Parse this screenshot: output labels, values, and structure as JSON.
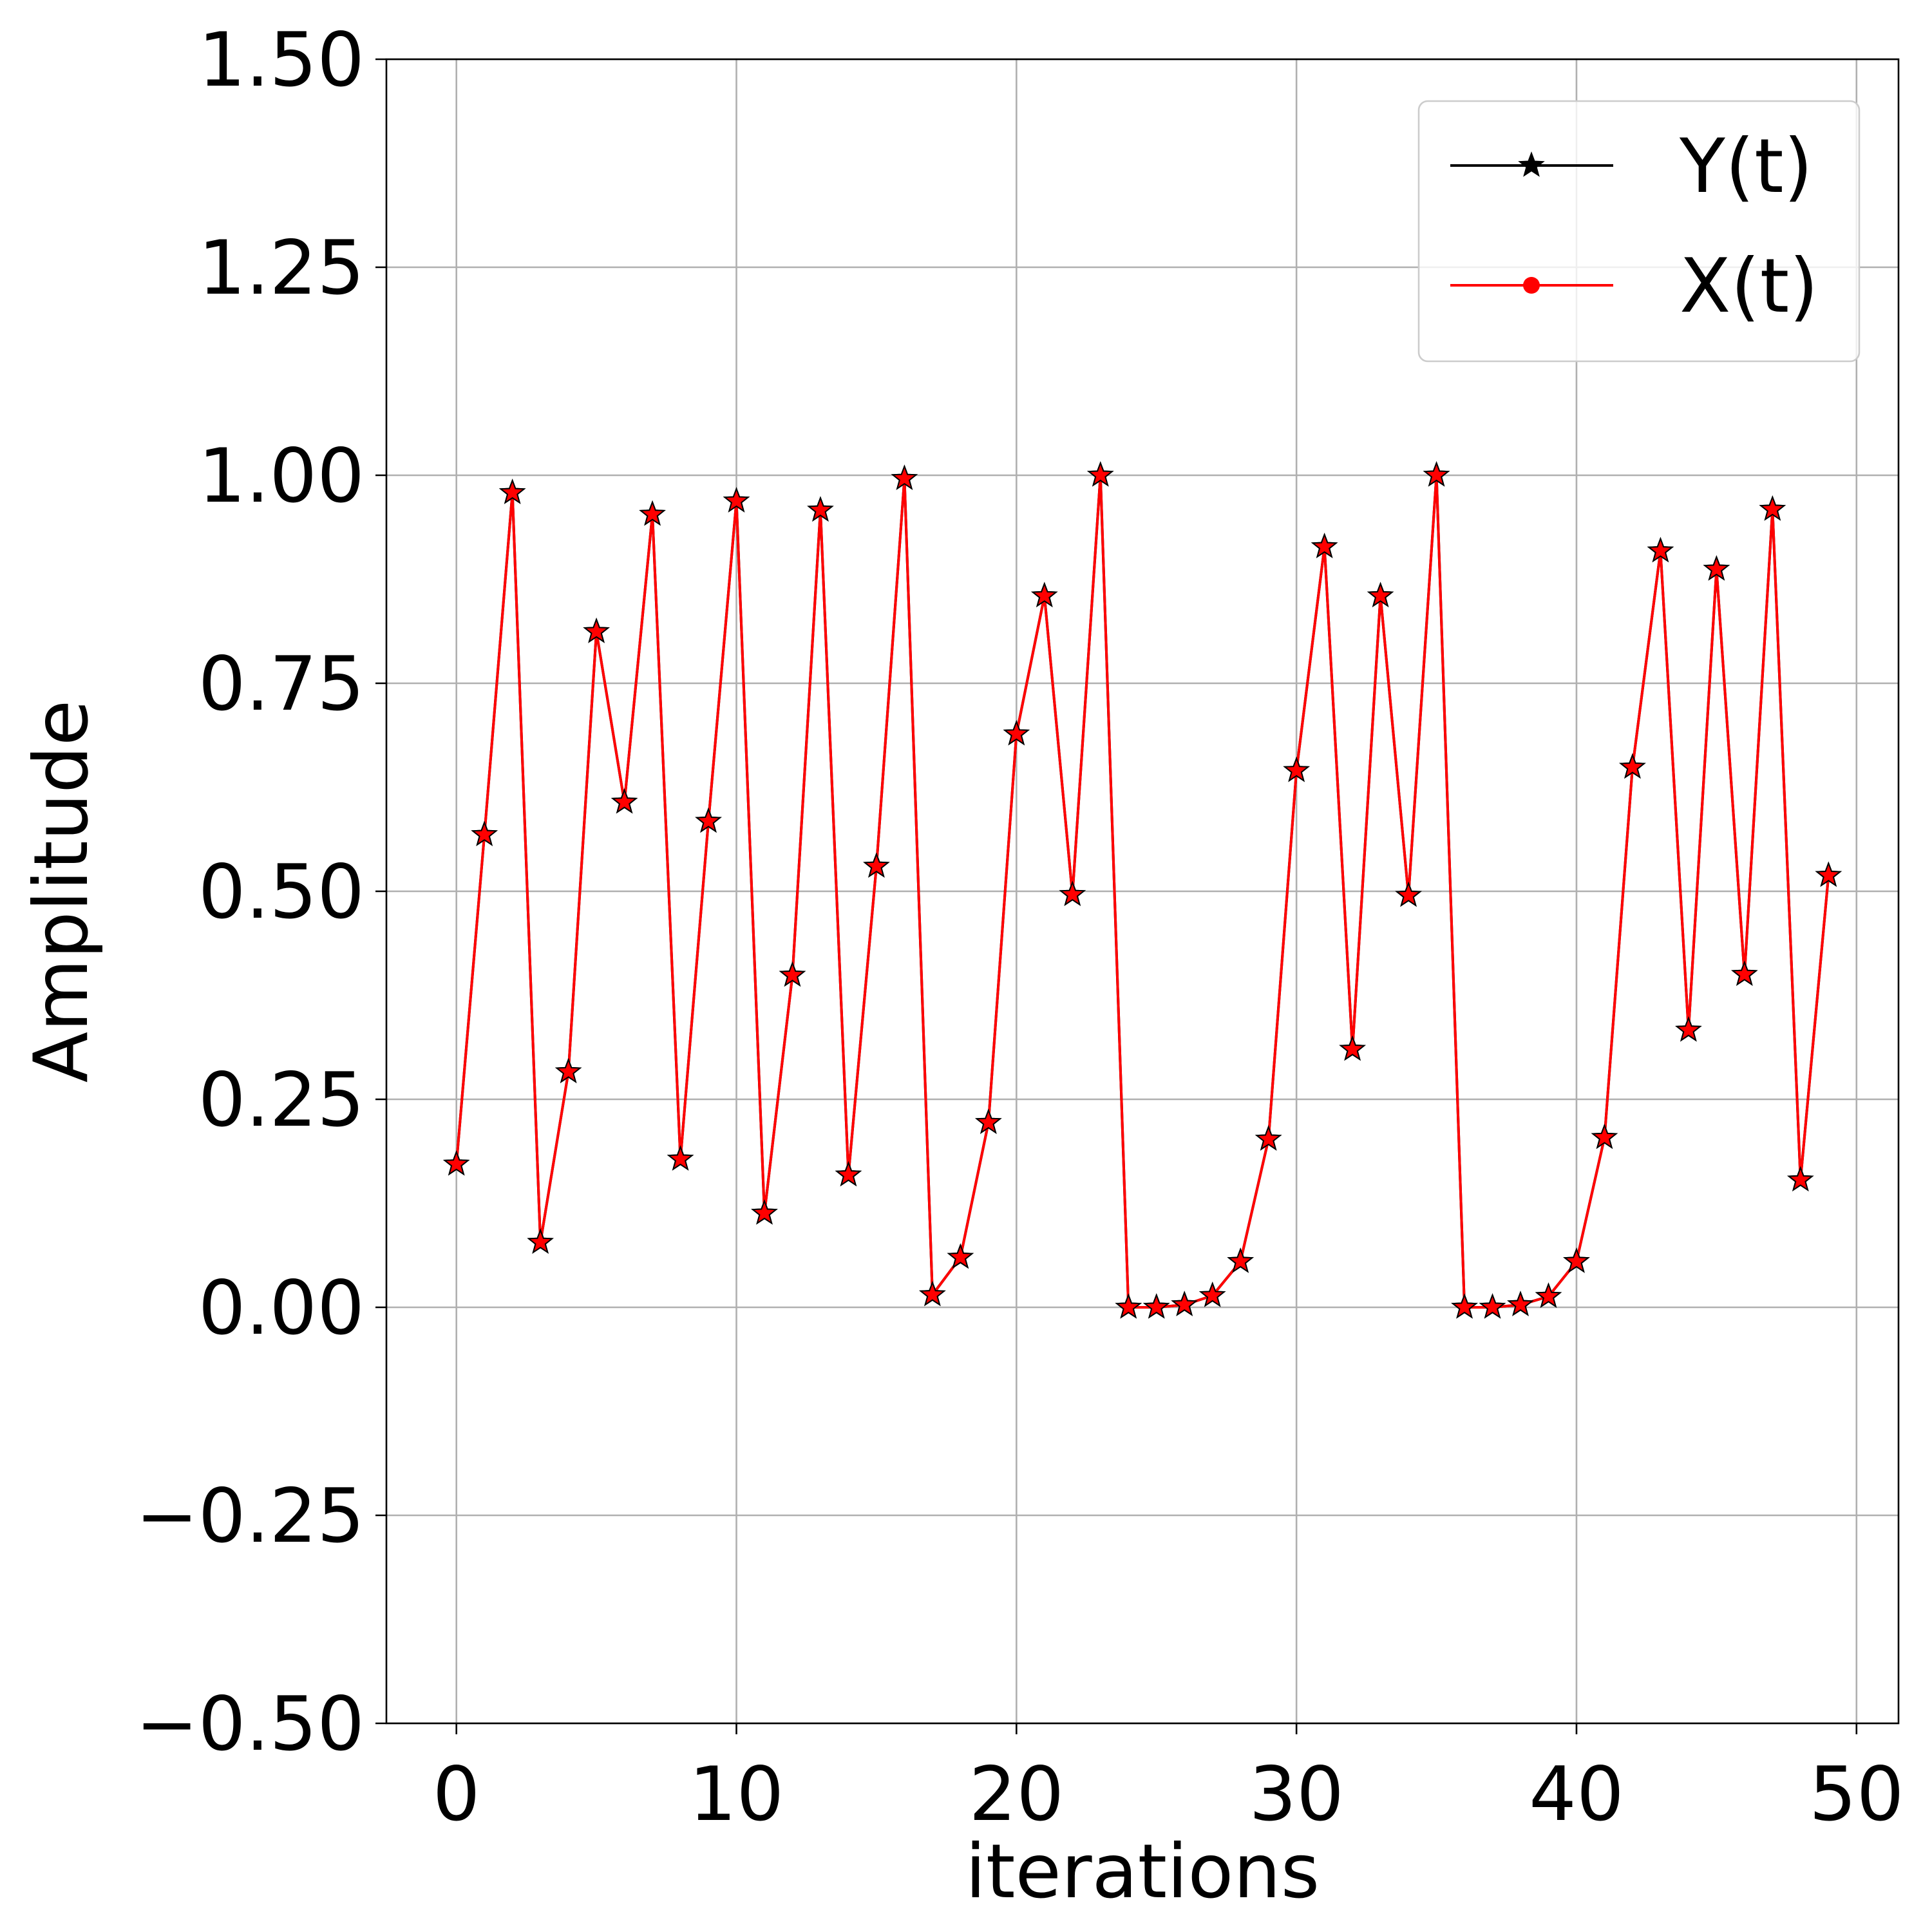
{
  "chart_data": {
    "type": "line",
    "title": "",
    "xlabel": "iterations",
    "ylabel": "Amplitude",
    "xlim": [
      -2.5,
      51.5
    ],
    "ylim": [
      -0.5,
      1.5
    ],
    "x_ticks": [
      0,
      10,
      20,
      30,
      40,
      50
    ],
    "x_tick_labels": [
      "0",
      "10",
      "20",
      "30",
      "40",
      "50"
    ],
    "y_ticks": [
      -0.5,
      -0.25,
      0.0,
      0.25,
      0.5,
      0.75,
      1.0,
      1.25,
      1.5
    ],
    "y_tick_labels": [
      "−0.50",
      "−0.25",
      "0.00",
      "0.25",
      "0.50",
      "0.75",
      "1.00",
      "1.25",
      "1.50"
    ],
    "grid": true,
    "legend": {
      "placement": "top-right",
      "entries": [
        "Y(t)",
        "X(t)"
      ]
    },
    "x": [
      0,
      1,
      2,
      3,
      4,
      5,
      6,
      7,
      8,
      9,
      10,
      11,
      12,
      13,
      14,
      15,
      16,
      17,
      18,
      19,
      20,
      21,
      22,
      23,
      24,
      25,
      26,
      27,
      28,
      29,
      30,
      31,
      32,
      33,
      34,
      35,
      36,
      37,
      38,
      39,
      40,
      41,
      42,
      43,
      44,
      45,
      46,
      47,
      48,
      49
    ],
    "series": [
      {
        "name": "Y(t)",
        "color": "#000000",
        "marker": "star",
        "values": [
          0.172,
          0.568,
          0.979,
          0.078,
          0.283,
          0.812,
          0.607,
          0.953,
          0.178,
          0.584,
          0.969,
          0.113,
          0.399,
          0.958,
          0.159,
          0.53,
          0.996,
          0.015,
          0.06,
          0.222,
          0.689,
          0.855,
          0.496,
          1.0,
          0.0,
          0.0,
          0.003,
          0.014,
          0.055,
          0.202,
          0.645,
          0.914,
          0.31,
          0.855,
          0.495,
          1.0,
          0.0,
          0.0,
          0.003,
          0.013,
          0.055,
          0.204,
          0.649,
          0.909,
          0.333,
          0.887,
          0.4,
          0.959,
          0.153,
          0.519
        ]
      },
      {
        "name": "X(t)",
        "color": "#ff0000",
        "marker": "circle",
        "values": [
          0.172,
          0.568,
          0.979,
          0.078,
          0.283,
          0.812,
          0.607,
          0.953,
          0.178,
          0.584,
          0.969,
          0.113,
          0.399,
          0.958,
          0.159,
          0.53,
          0.996,
          0.015,
          0.06,
          0.222,
          0.689,
          0.855,
          0.496,
          1.0,
          0.0,
          0.0,
          0.003,
          0.014,
          0.055,
          0.202,
          0.645,
          0.914,
          0.31,
          0.855,
          0.495,
          1.0,
          0.0,
          0.0,
          0.003,
          0.013,
          0.055,
          0.204,
          0.649,
          0.909,
          0.333,
          0.887,
          0.4,
          0.959,
          0.153,
          0.519
        ]
      }
    ],
    "colors": {
      "grid": "#b0b0b0",
      "axes": "#000000",
      "background": "#ffffff"
    }
  }
}
